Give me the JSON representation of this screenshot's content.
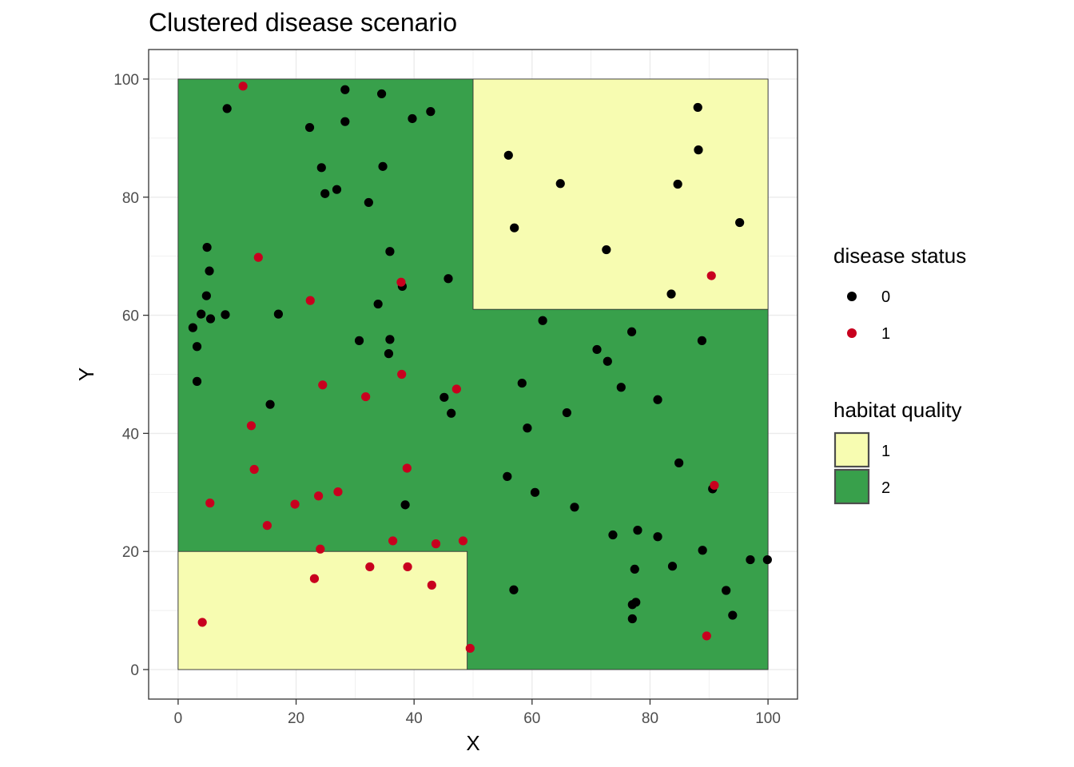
{
  "chart_data": {
    "type": "scatter",
    "title": "Clustered disease scenario",
    "xlabel": "X",
    "ylabel": "Y",
    "xlim": [
      -5,
      105
    ],
    "ylim": [
      -5,
      105
    ],
    "x_ticks": [
      0,
      20,
      40,
      60,
      80,
      100
    ],
    "y_ticks": [
      0,
      20,
      40,
      60,
      80,
      100
    ],
    "x_tick_labels": [
      "0",
      "20",
      "40",
      "60",
      "80",
      "100"
    ],
    "y_tick_labels": [
      "0",
      "20",
      "40",
      "60",
      "80",
      "100"
    ],
    "grid": true,
    "theme": "bw",
    "habitat_regions": [
      {
        "quality": "2",
        "x": [
          0,
          100
        ],
        "y": [
          0,
          100
        ]
      },
      {
        "quality": "1",
        "x": [
          50,
          100
        ],
        "y": [
          61,
          100
        ]
      },
      {
        "quality": "1",
        "x": [
          0,
          49
        ],
        "y": [
          0,
          20
        ]
      }
    ],
    "habitat_colors": {
      "1": "#f7fcb1",
      "2": "#38a04b"
    },
    "status_colors": {
      "0": "#000000",
      "1": "#c8001e"
    },
    "legend": {
      "placement": "right",
      "disease_status": {
        "title": "disease status",
        "items": [
          {
            "label": "0",
            "key": "0"
          },
          {
            "label": "1",
            "key": "1"
          }
        ]
      },
      "habitat_quality": {
        "title": "habitat quality",
        "items": [
          {
            "label": "1",
            "key": "1"
          },
          {
            "label": "2",
            "key": "2"
          }
        ]
      }
    },
    "series": [
      {
        "status": "0",
        "points": [
          [
            8.3,
            95
          ],
          [
            22.3,
            91.8
          ],
          [
            28.3,
            98.2
          ],
          [
            28.3,
            92.8
          ],
          [
            34.5,
            97.5
          ],
          [
            39.7,
            93.3
          ],
          [
            42.8,
            94.5
          ],
          [
            24.3,
            85
          ],
          [
            24.9,
            80.6
          ],
          [
            26.9,
            81.3
          ],
          [
            34.7,
            85.2
          ],
          [
            32.3,
            79.1
          ],
          [
            4.9,
            71.5
          ],
          [
            5.3,
            67.5
          ],
          [
            4.8,
            63.3
          ],
          [
            3.9,
            60.2
          ],
          [
            5.5,
            59.4
          ],
          [
            2.5,
            57.9
          ],
          [
            3.2,
            54.7
          ],
          [
            3.2,
            48.8
          ],
          [
            8.0,
            60.1
          ],
          [
            17.0,
            60.2
          ],
          [
            15.6,
            44.9
          ],
          [
            35.9,
            70.8
          ],
          [
            38.0,
            64.9
          ],
          [
            45.8,
            66.2
          ],
          [
            33.9,
            61.9
          ],
          [
            30.7,
            55.7
          ],
          [
            35.9,
            55.9
          ],
          [
            35.7,
            53.5
          ],
          [
            45.1,
            46.1
          ],
          [
            46.3,
            43.4
          ],
          [
            38.5,
            27.9
          ],
          [
            56.0,
            87.1
          ],
          [
            64.8,
            82.3
          ],
          [
            57.0,
            74.8
          ],
          [
            72.6,
            71.1
          ],
          [
            84.7,
            82.2
          ],
          [
            88.1,
            95.2
          ],
          [
            88.2,
            88
          ],
          [
            95.2,
            75.7
          ],
          [
            83.6,
            63.6
          ],
          [
            61.8,
            59.1
          ],
          [
            71.0,
            54.2
          ],
          [
            72.8,
            52.2
          ],
          [
            76.9,
            57.2
          ],
          [
            88.8,
            55.7
          ],
          [
            58.3,
            48.5
          ],
          [
            59.2,
            40.9
          ],
          [
            65.9,
            43.5
          ],
          [
            75.1,
            47.8
          ],
          [
            81.3,
            45.7
          ],
          [
            55.8,
            32.7
          ],
          [
            60.5,
            30.0
          ],
          [
            67.2,
            27.5
          ],
          [
            84.9,
            35.0
          ],
          [
            90.6,
            30.6
          ],
          [
            73.7,
            22.8
          ],
          [
            77.9,
            23.6
          ],
          [
            81.3,
            22.5
          ],
          [
            77.4,
            17.0
          ],
          [
            83.8,
            17.5
          ],
          [
            88.9,
            20.2
          ],
          [
            97.0,
            18.6
          ],
          [
            99.9,
            18.6
          ],
          [
            56.9,
            13.5
          ],
          [
            77.0,
            11.0
          ],
          [
            77.6,
            11.4
          ],
          [
            77.0,
            8.6
          ],
          [
            92.9,
            13.4
          ],
          [
            94.0,
            9.2
          ]
        ]
      },
      {
        "status": "1",
        "points": [
          [
            11.0,
            98.8
          ],
          [
            13.6,
            69.8
          ],
          [
            22.4,
            62.5
          ],
          [
            37.8,
            65.6
          ],
          [
            24.5,
            48.2
          ],
          [
            31.8,
            46.2
          ],
          [
            37.9,
            50.0
          ],
          [
            47.2,
            47.5
          ],
          [
            12.4,
            41.3
          ],
          [
            12.9,
            33.9
          ],
          [
            5.4,
            28.2
          ],
          [
            19.8,
            28.0
          ],
          [
            23.8,
            29.4
          ],
          [
            27.1,
            30.1
          ],
          [
            38.8,
            34.1
          ],
          [
            15.1,
            24.4
          ],
          [
            24.1,
            20.4
          ],
          [
            36.4,
            21.8
          ],
          [
            43.7,
            21.3
          ],
          [
            48.3,
            21.8
          ],
          [
            23.1,
            15.4
          ],
          [
            32.5,
            17.4
          ],
          [
            38.9,
            17.4
          ],
          [
            43.0,
            14.3
          ],
          [
            4.1,
            8.0
          ],
          [
            49.5,
            3.6
          ],
          [
            90.4,
            66.7
          ],
          [
            90.9,
            31.2
          ],
          [
            89.6,
            5.7
          ]
        ]
      }
    ]
  }
}
